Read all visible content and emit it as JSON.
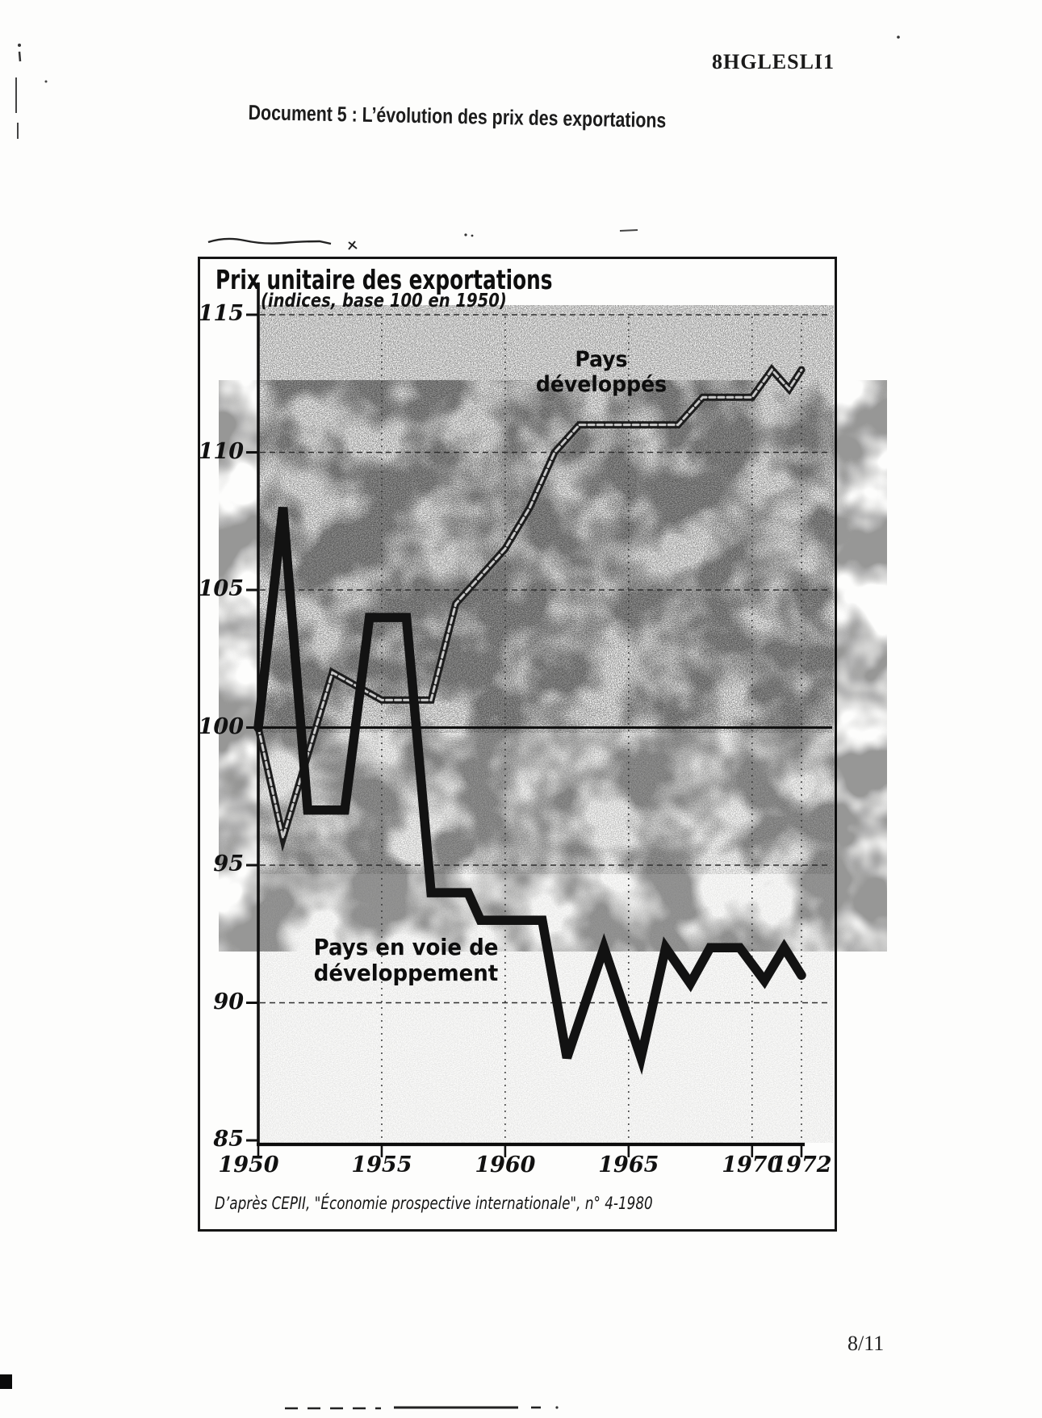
{
  "page": {
    "header_code": "8HGLESLI1",
    "title": "Document 5 : L’évolution des prix des exportations",
    "page_number": "8/11"
  },
  "chart": {
    "title": "Prix unitaire des exportations",
    "subtitle": "(indices, base 100 en 1950)",
    "developed_label_line1": "Pays",
    "developed_label_line2": "développés",
    "developing_label_line1": "Pays en voie de",
    "developing_label_line2": "développement",
    "source": "D’après CEPII,  \"Économie prospective internationale\", n° 4-1980"
  },
  "chart_data": {
    "type": "line",
    "title": "Prix unitaire des exportations",
    "subtitle": "(indices, base 100 en 1950)",
    "xlabel": "",
    "ylabel": "",
    "xlim": [
      1950,
      1972
    ],
    "ylim": [
      85,
      115
    ],
    "x_ticks": [
      1950,
      1955,
      1960,
      1965,
      1970,
      1972
    ],
    "y_ticks": [
      85,
      90,
      95,
      100,
      105,
      110,
      115
    ],
    "grid": "dashed horizontal and vertical gridlines; solid emphasis line at y=100",
    "legend_position": "labels drawn next to lines",
    "series": [
      {
        "name": "Pays développés",
        "style": "thick dark line with light core (outlined)",
        "points": [
          [
            1950,
            100
          ],
          [
            1951,
            96
          ],
          [
            1953,
            102
          ],
          [
            1954,
            101.5
          ],
          [
            1955,
            101
          ],
          [
            1957,
            101
          ],
          [
            1958,
            104.5
          ],
          [
            1959,
            105.5
          ],
          [
            1960,
            106.5
          ],
          [
            1961,
            108
          ],
          [
            1962,
            110
          ],
          [
            1963,
            111
          ],
          [
            1967,
            111
          ],
          [
            1968,
            112
          ],
          [
            1970,
            112
          ],
          [
            1970.8,
            113
          ],
          [
            1971.5,
            112.3
          ],
          [
            1972,
            113
          ]
        ]
      },
      {
        "name": "Pays en voie de développement",
        "style": "very thick solid dark line",
        "points": [
          [
            1950,
            100
          ],
          [
            1951,
            108
          ],
          [
            1952,
            97
          ],
          [
            1953.5,
            97
          ],
          [
            1954.5,
            104
          ],
          [
            1956,
            104
          ],
          [
            1957,
            94
          ],
          [
            1958.5,
            94
          ],
          [
            1959,
            93
          ],
          [
            1961.5,
            93
          ],
          [
            1962.5,
            88
          ],
          [
            1964,
            92
          ],
          [
            1965.5,
            88
          ],
          [
            1966.5,
            92
          ],
          [
            1967.5,
            90.7
          ],
          [
            1968.3,
            92
          ],
          [
            1969.5,
            92
          ],
          [
            1970.5,
            90.8
          ],
          [
            1971.3,
            92
          ],
          [
            1972,
            91
          ]
        ]
      }
    ],
    "source": "D’après CEPII, \"Économie prospective internationale\", n° 4-1980"
  }
}
